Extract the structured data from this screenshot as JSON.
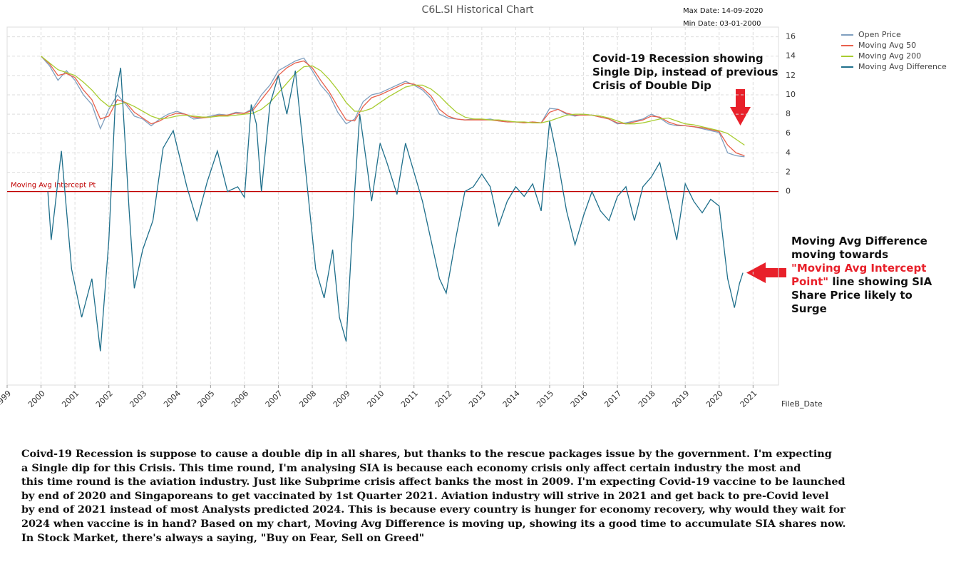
{
  "chart_data": {
    "type": "line",
    "title": "C6L.SI Historical Chart",
    "max_date": "Max Date: 14-09-2020",
    "min_date": "Min Date: 03-01-2000",
    "xlabel": "FileB_Date",
    "xlim": [
      1999,
      2021.75
    ],
    "xticks": [
      1999,
      2000,
      2001,
      2002,
      2003,
      2004,
      2005,
      2006,
      2007,
      2008,
      2009,
      2010,
      2011,
      2012,
      2013,
      2014,
      2015,
      2016,
      2017,
      2018,
      2019,
      2020,
      2021
    ],
    "ylim": [
      -20,
      17
    ],
    "yticks": [
      0,
      2,
      4,
      6,
      8,
      10,
      12,
      14,
      16
    ],
    "grid": true,
    "legend": "top-right",
    "reference_line": {
      "value": 0,
      "label": "Moving Avg Intercept Pt",
      "color": "#c00000"
    },
    "series": [
      {
        "name": "Open Price",
        "color": "#7f9fbf",
        "x": [
          2000,
          2000.25,
          2000.5,
          2000.75,
          2001,
          2001.25,
          2001.5,
          2001.75,
          2002,
          2002.25,
          2002.5,
          2002.75,
          2003,
          2003.25,
          2003.5,
          2003.75,
          2004,
          2004.25,
          2004.5,
          2004.75,
          2005,
          2005.25,
          2005.5,
          2005.75,
          2006,
          2006.25,
          2006.5,
          2006.75,
          2007,
          2007.25,
          2007.5,
          2007.75,
          2008,
          2008.25,
          2008.5,
          2008.75,
          2009,
          2009.25,
          2009.5,
          2009.75,
          2010,
          2010.25,
          2010.5,
          2010.75,
          2011,
          2011.25,
          2011.5,
          2011.75,
          2012,
          2012.25,
          2012.5,
          2012.75,
          2013,
          2013.25,
          2013.5,
          2013.75,
          2014,
          2014.25,
          2014.5,
          2014.75,
          2015,
          2015.25,
          2015.5,
          2015.75,
          2016,
          2016.25,
          2016.5,
          2016.75,
          2017,
          2017.25,
          2017.5,
          2017.75,
          2018,
          2018.25,
          2018.5,
          2018.75,
          2019,
          2019.25,
          2019.5,
          2019.75,
          2020,
          2020.25,
          2020.5,
          2020.75
        ],
        "values": [
          14,
          13,
          11.5,
          12.5,
          11.5,
          10,
          9,
          6.5,
          8.5,
          10,
          9,
          7.8,
          7.5,
          6.8,
          7.5,
          8,
          8.3,
          8,
          7.5,
          7.6,
          7.8,
          8,
          7.9,
          8.2,
          8.1,
          8.6,
          10,
          11,
          12.5,
          13,
          13.5,
          13.8,
          12.5,
          11,
          10,
          8.2,
          7,
          7.5,
          9.3,
          10,
          10.2,
          10.6,
          11,
          11.4,
          11,
          10.5,
          9.6,
          8,
          7.6,
          7.5,
          7.4,
          7.5,
          7.4,
          7.5,
          7.3,
          7.2,
          7.2,
          7.1,
          7.2,
          7.1,
          8.6,
          8.5,
          8,
          7.8,
          8,
          7.9,
          7.7,
          7.5,
          7,
          7.1,
          7.3,
          7.5,
          8,
          7.6,
          7,
          6.8,
          6.8,
          6.7,
          6.5,
          6.3,
          6.1,
          4,
          3.7,
          3.6
        ]
      },
      {
        "name": "Moving Avg 50",
        "color": "#e8604c",
        "x": [
          2000,
          2000.25,
          2000.5,
          2000.75,
          2001,
          2001.25,
          2001.5,
          2001.75,
          2002,
          2002.25,
          2002.5,
          2002.75,
          2003,
          2003.25,
          2003.5,
          2003.75,
          2004,
          2004.25,
          2004.5,
          2004.75,
          2005,
          2005.25,
          2005.5,
          2005.75,
          2006,
          2006.25,
          2006.5,
          2006.75,
          2007,
          2007.25,
          2007.5,
          2007.75,
          2008,
          2008.25,
          2008.5,
          2008.75,
          2009,
          2009.25,
          2009.5,
          2009.75,
          2010,
          2010.25,
          2010.5,
          2010.75,
          2011,
          2011.25,
          2011.5,
          2011.75,
          2012,
          2012.25,
          2012.5,
          2012.75,
          2013,
          2013.25,
          2013.5,
          2013.75,
          2014,
          2014.25,
          2014.5,
          2014.75,
          2015,
          2015.25,
          2015.5,
          2015.75,
          2016,
          2016.25,
          2016.5,
          2016.75,
          2017,
          2017.25,
          2017.5,
          2017.75,
          2018,
          2018.25,
          2018.5,
          2018.75,
          2019,
          2019.25,
          2019.5,
          2019.75,
          2020,
          2020.25,
          2020.5,
          2020.75
        ],
        "values": [
          14,
          13.2,
          12,
          12.2,
          11.8,
          10.5,
          9.5,
          7.5,
          7.8,
          9.5,
          9.2,
          8.2,
          7.6,
          7,
          7.3,
          7.8,
          8.1,
          8,
          7.7,
          7.6,
          7.7,
          7.9,
          7.9,
          8.1,
          8.1,
          8.4,
          9.5,
          10.6,
          12,
          12.8,
          13.3,
          13.5,
          12.8,
          11.5,
          10.3,
          8.8,
          7.4,
          7.3,
          8.8,
          9.7,
          10,
          10.4,
          10.8,
          11.2,
          11.1,
          10.7,
          9.9,
          8.5,
          7.8,
          7.5,
          7.4,
          7.4,
          7.4,
          7.4,
          7.3,
          7.2,
          7.2,
          7.1,
          7.2,
          7.1,
          8.2,
          8.5,
          8.1,
          7.9,
          7.9,
          7.9,
          7.7,
          7.5,
          7.1,
          7,
          7.2,
          7.4,
          7.8,
          7.7,
          7.2,
          6.9,
          6.8,
          6.7,
          6.6,
          6.4,
          6.2,
          4.8,
          4,
          3.7
        ]
      },
      {
        "name": "Moving Avg 200",
        "color": "#a8cc30",
        "x": [
          2000,
          2000.25,
          2000.5,
          2000.75,
          2001,
          2001.25,
          2001.5,
          2001.75,
          2002,
          2002.25,
          2002.5,
          2002.75,
          2003,
          2003.25,
          2003.5,
          2003.75,
          2004,
          2004.25,
          2004.5,
          2004.75,
          2005,
          2005.25,
          2005.5,
          2005.75,
          2006,
          2006.25,
          2006.5,
          2006.75,
          2007,
          2007.25,
          2007.5,
          2007.75,
          2008,
          2008.25,
          2008.5,
          2008.75,
          2009,
          2009.25,
          2009.5,
          2009.75,
          2010,
          2010.25,
          2010.5,
          2010.75,
          2011,
          2011.25,
          2011.5,
          2011.75,
          2012,
          2012.25,
          2012.5,
          2012.75,
          2013,
          2013.25,
          2013.5,
          2013.75,
          2014,
          2014.25,
          2014.5,
          2014.75,
          2015,
          2015.25,
          2015.5,
          2015.75,
          2016,
          2016.25,
          2016.5,
          2016.75,
          2017,
          2017.25,
          2017.5,
          2017.75,
          2018,
          2018.25,
          2018.5,
          2018.75,
          2019,
          2019.25,
          2019.5,
          2019.75,
          2020,
          2020.25,
          2020.5,
          2020.75
        ],
        "values": [
          14,
          13.3,
          12.6,
          12.3,
          12,
          11.3,
          10.5,
          9.5,
          8.8,
          9,
          9.2,
          8.8,
          8.3,
          7.8,
          7.5,
          7.6,
          7.8,
          7.9,
          7.8,
          7.7,
          7.7,
          7.8,
          7.8,
          7.9,
          8,
          8.1,
          8.5,
          9.2,
          10.2,
          11.2,
          12.2,
          12.9,
          13,
          12.5,
          11.6,
          10.5,
          9.2,
          8.3,
          8.3,
          8.6,
          9.2,
          9.8,
          10.3,
          10.8,
          11,
          11,
          10.6,
          9.9,
          9,
          8.2,
          7.7,
          7.5,
          7.5,
          7.4,
          7.4,
          7.3,
          7.2,
          7.2,
          7.1,
          7.1,
          7.3,
          7.6,
          7.9,
          8,
          8,
          7.9,
          7.8,
          7.6,
          7.3,
          7,
          7,
          7.1,
          7.3,
          7.5,
          7.6,
          7.3,
          7,
          6.9,
          6.7,
          6.5,
          6.3,
          6,
          5.4,
          4.8
        ]
      },
      {
        "name": "Moving Avg Difference",
        "color": "#1f6f8b",
        "x": [
          2000.2,
          2000.3,
          2000.6,
          2000.9,
          2001.2,
          2001.5,
          2001.75,
          2002,
          2002.2,
          2002.35,
          2002.6,
          2002.75,
          2003,
          2003.3,
          2003.6,
          2003.9,
          2004.3,
          2004.6,
          2004.9,
          2005.2,
          2005.5,
          2005.8,
          2006,
          2006.2,
          2006.35,
          2006.5,
          2006.75,
          2007,
          2007.25,
          2007.5,
          2007.75,
          2008.1,
          2008.35,
          2008.6,
          2008.8,
          2009,
          2009.25,
          2009.4,
          2009.6,
          2009.75,
          2010,
          2010.2,
          2010.5,
          2010.75,
          2011,
          2011.25,
          2011.5,
          2011.75,
          2011.95,
          2012.25,
          2012.5,
          2012.75,
          2013,
          2013.25,
          2013.5,
          2013.75,
          2014,
          2014.25,
          2014.5,
          2014.75,
          2015,
          2015.25,
          2015.5,
          2015.75,
          2016,
          2016.25,
          2016.5,
          2016.75,
          2017,
          2017.25,
          2017.5,
          2017.75,
          2018,
          2018.25,
          2018.5,
          2018.75,
          2019,
          2019.25,
          2019.5,
          2019.75,
          2020,
          2020.25,
          2020.45,
          2020.6,
          2020.7
        ],
        "values": [
          0,
          -5,
          4.2,
          -8,
          -13,
          -9,
          -16.5,
          -5,
          10,
          12.8,
          -2,
          -10,
          -6,
          -3,
          4.5,
          6.3,
          0.5,
          -3,
          1,
          4.2,
          0,
          0.5,
          -0.6,
          9,
          7,
          0,
          9,
          12,
          8,
          12.5,
          4,
          -8,
          -11,
          -6,
          -13,
          -15.5,
          0,
          8,
          3,
          -1,
          5,
          3,
          -0.3,
          5,
          2,
          -1,
          -5,
          -9,
          -10.5,
          -4.5,
          0,
          0.5,
          1.8,
          0.5,
          -3.5,
          -1,
          0.5,
          -0.5,
          0.8,
          -2,
          7.3,
          3,
          -2,
          -5.5,
          -2.5,
          0,
          -2,
          -3,
          -0.5,
          0.5,
          -3,
          0.5,
          1.5,
          3,
          -1,
          -5,
          0.8,
          -1,
          -2.2,
          -0.8,
          -1.5,
          -9,
          -12,
          -9.5,
          -8.4
        ]
      }
    ]
  },
  "annotations": {
    "covid_dip": [
      "Covid-19 Recession showing",
      "Single Dip, instead of previous",
      "Crisis of Double Dip"
    ],
    "difference_note": {
      "before": "Moving Avg Difference moving towards ",
      "highlight": "\"Moving Avg Intercept Point\"",
      "after": " line showing SIA Share Price likely to Surge"
    }
  },
  "paragraph": [
    "Coivd-19 Recession is suppose to cause a double dip in all shares, but thanks to the rescue packages issue by the government. I'm expecting",
    "a Single dip for this Crisis. This time round, I'm analysing SIA is because each economy crisis only affect certain industry the most and",
    "this time round is the aviation industry. Just like Subprime crisis affect banks the most in 2009. I'm expecting Covid-19 vaccine to be launched",
    "by end of 2020 and Singaporeans to get vaccinated by 1st Quarter 2021. Aviation industry will strive in 2021 and get back to pre-Covid level",
    "by end of 2021 instead of most Analysts predicted 2024. This is because every country is hunger for economy recovery, why would they wait for",
    "2024 when vaccine is in hand? Based on my chart, Moving Avg Difference is moving up, showing its a good time to accumulate SIA shares now.",
    "In Stock Market, there's always a saying, \"Buy on Fear, Sell on Greed\""
  ]
}
